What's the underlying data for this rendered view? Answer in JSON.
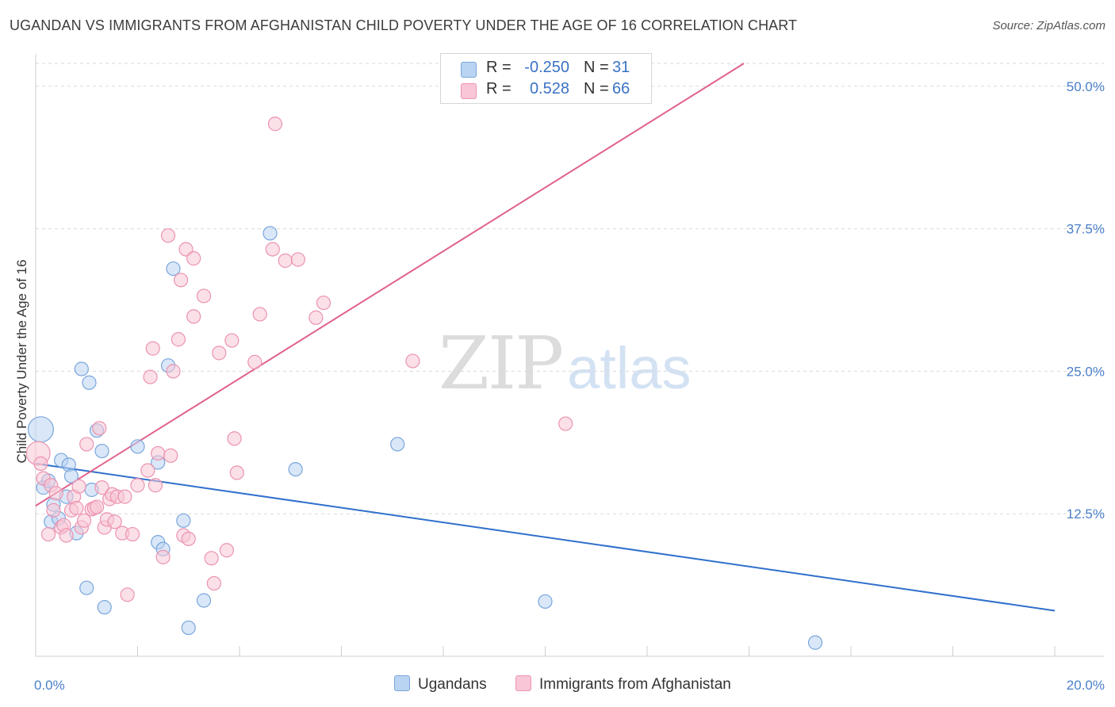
{
  "header": {
    "title": "UGANDAN VS IMMIGRANTS FROM AFGHANISTAN CHILD POVERTY UNDER THE AGE OF 16 CORRELATION CHART",
    "source": "Source: ZipAtlas.com"
  },
  "watermark": {
    "zip": "ZIP",
    "atlas": "atlas"
  },
  "colors": {
    "ugandans_fill": "#b9d3f2",
    "ugandans_stroke": "#7aa6dc",
    "ugandans_line": "#2f6fcc",
    "afghan_fill": "#f8c6d6",
    "afghan_stroke": "#ec93b0",
    "afghan_line": "#e0628c",
    "tick_label": "#4a7fc8",
    "grid": "#d9d9d9"
  },
  "legend": {
    "rows": [
      {
        "r_label": "R =",
        "r_value": "-0.250",
        "n_label": "N =",
        "n_value": "31"
      },
      {
        "r_label": "R =",
        "r_value": "0.528",
        "n_label": "N =",
        "n_value": "66"
      }
    ]
  },
  "bottom_legend": {
    "series1": "Ugandans",
    "series2": "Immigrants from Afghanistan"
  },
  "chart_data": {
    "type": "scatter",
    "ylabel": "Child Poverty Under the Age of 16",
    "xlim": [
      0,
      20
    ],
    "ylim": [
      0,
      52
    ],
    "y_ticks": [
      {
        "value": 12.5,
        "label": "12.5%"
      },
      {
        "value": 25.0,
        "label": "25.0%"
      },
      {
        "value": 37.5,
        "label": "37.5%"
      },
      {
        "value": 50.0,
        "label": "50.0%"
      }
    ],
    "x_ticks": [
      {
        "value": 0,
        "label": "0.0%"
      },
      {
        "value": 20,
        "label": "20.0%"
      }
    ],
    "x_minor_ticks": [
      2,
      4,
      6,
      8,
      10,
      12,
      14,
      16,
      18,
      20
    ],
    "grid": true,
    "series": [
      {
        "name": "Ugandans",
        "points": [
          [
            0.1,
            19.9,
            1.5
          ],
          [
            0.15,
            14.8,
            1
          ],
          [
            0.25,
            15.4,
            1
          ],
          [
            0.3,
            11.8,
            1
          ],
          [
            0.35,
            13.3,
            1
          ],
          [
            0.45,
            12.1,
            1
          ],
          [
            0.5,
            17.2,
            1
          ],
          [
            0.6,
            14.0,
            1
          ],
          [
            0.65,
            16.8,
            1
          ],
          [
            0.7,
            15.8,
            1
          ],
          [
            0.8,
            10.8,
            1
          ],
          [
            0.9,
            25.2,
            1
          ],
          [
            1.0,
            6.0,
            1
          ],
          [
            1.05,
            24.0,
            1
          ],
          [
            1.1,
            14.6,
            1
          ],
          [
            1.2,
            19.8,
            1
          ],
          [
            1.3,
            18.0,
            1
          ],
          [
            1.35,
            4.3,
            1
          ],
          [
            2.0,
            18.4,
            1
          ],
          [
            2.4,
            10.0,
            1
          ],
          [
            2.5,
            9.4,
            1
          ],
          [
            2.4,
            17.0,
            1
          ],
          [
            2.6,
            25.5,
            1
          ],
          [
            2.7,
            34.0,
            1
          ],
          [
            2.9,
            11.9,
            1
          ],
          [
            3.0,
            2.5,
            1
          ],
          [
            3.3,
            4.9,
            1
          ],
          [
            4.6,
            37.1,
            1
          ],
          [
            5.1,
            16.4,
            1
          ],
          [
            7.1,
            18.6,
            1
          ],
          [
            10.0,
            4.8,
            1
          ],
          [
            15.3,
            1.2,
            1
          ]
        ],
        "trend": [
          [
            0.0,
            16.9
          ],
          [
            20.0,
            4.0
          ]
        ]
      },
      {
        "name": "Immigrants from Afghanistan",
        "points": [
          [
            0.05,
            17.8,
            1.4
          ],
          [
            0.1,
            16.9,
            1
          ],
          [
            0.15,
            15.6,
            1
          ],
          [
            0.25,
            10.7,
            1
          ],
          [
            0.3,
            15.0,
            1
          ],
          [
            0.35,
            12.8,
            1
          ],
          [
            0.4,
            14.3,
            1
          ],
          [
            0.5,
            11.3,
            1
          ],
          [
            0.55,
            11.5,
            1
          ],
          [
            0.6,
            10.6,
            1
          ],
          [
            0.7,
            12.8,
            1
          ],
          [
            0.75,
            14.0,
            1
          ],
          [
            0.8,
            13.0,
            1
          ],
          [
            0.85,
            14.9,
            1
          ],
          [
            0.9,
            11.3,
            1
          ],
          [
            0.95,
            11.9,
            1
          ],
          [
            1.0,
            18.6,
            1
          ],
          [
            1.1,
            12.9,
            1
          ],
          [
            1.15,
            13.0,
            1
          ],
          [
            1.2,
            13.1,
            1
          ],
          [
            1.25,
            20.0,
            1
          ],
          [
            1.3,
            14.8,
            1
          ],
          [
            1.35,
            11.3,
            1
          ],
          [
            1.4,
            12.0,
            1
          ],
          [
            1.45,
            13.8,
            1
          ],
          [
            1.5,
            14.2,
            1
          ],
          [
            1.55,
            11.8,
            1
          ],
          [
            1.6,
            14.0,
            1
          ],
          [
            1.7,
            10.8,
            1
          ],
          [
            1.75,
            14.0,
            1
          ],
          [
            1.8,
            5.4,
            1
          ],
          [
            1.9,
            10.7,
            1
          ],
          [
            2.0,
            15.0,
            1
          ],
          [
            2.2,
            16.3,
            1
          ],
          [
            2.25,
            24.5,
            1
          ],
          [
            2.3,
            27.0,
            1
          ],
          [
            2.35,
            15.0,
            1
          ],
          [
            2.4,
            17.8,
            1
          ],
          [
            2.5,
            8.7,
            1
          ],
          [
            2.6,
            36.9,
            1
          ],
          [
            2.65,
            17.6,
            1
          ],
          [
            2.7,
            25.0,
            1
          ],
          [
            2.8,
            27.8,
            1
          ],
          [
            2.85,
            33.0,
            1
          ],
          [
            2.9,
            10.6,
            1
          ],
          [
            2.95,
            35.7,
            1
          ],
          [
            3.0,
            10.3,
            1
          ],
          [
            3.1,
            29.8,
            1
          ],
          [
            3.1,
            34.9,
            1
          ],
          [
            3.3,
            31.6,
            1
          ],
          [
            3.45,
            8.6,
            1
          ],
          [
            3.5,
            6.4,
            1
          ],
          [
            3.6,
            26.6,
            1
          ],
          [
            3.75,
            9.3,
            1
          ],
          [
            3.85,
            27.7,
            1
          ],
          [
            3.9,
            19.1,
            1
          ],
          [
            3.95,
            16.1,
            1
          ],
          [
            4.3,
            25.8,
            1
          ],
          [
            4.4,
            30.0,
            1
          ],
          [
            4.65,
            35.7,
            1
          ],
          [
            4.7,
            46.7,
            1
          ],
          [
            4.9,
            34.7,
            1
          ],
          [
            5.15,
            34.8,
            1
          ],
          [
            5.5,
            29.7,
            1
          ],
          [
            5.65,
            31.0,
            1
          ],
          [
            7.4,
            25.9,
            1
          ],
          [
            10.4,
            20.4,
            1
          ]
        ],
        "trend": [
          [
            0.0,
            13.2
          ],
          [
            13.9,
            52.0
          ]
        ]
      }
    ]
  }
}
